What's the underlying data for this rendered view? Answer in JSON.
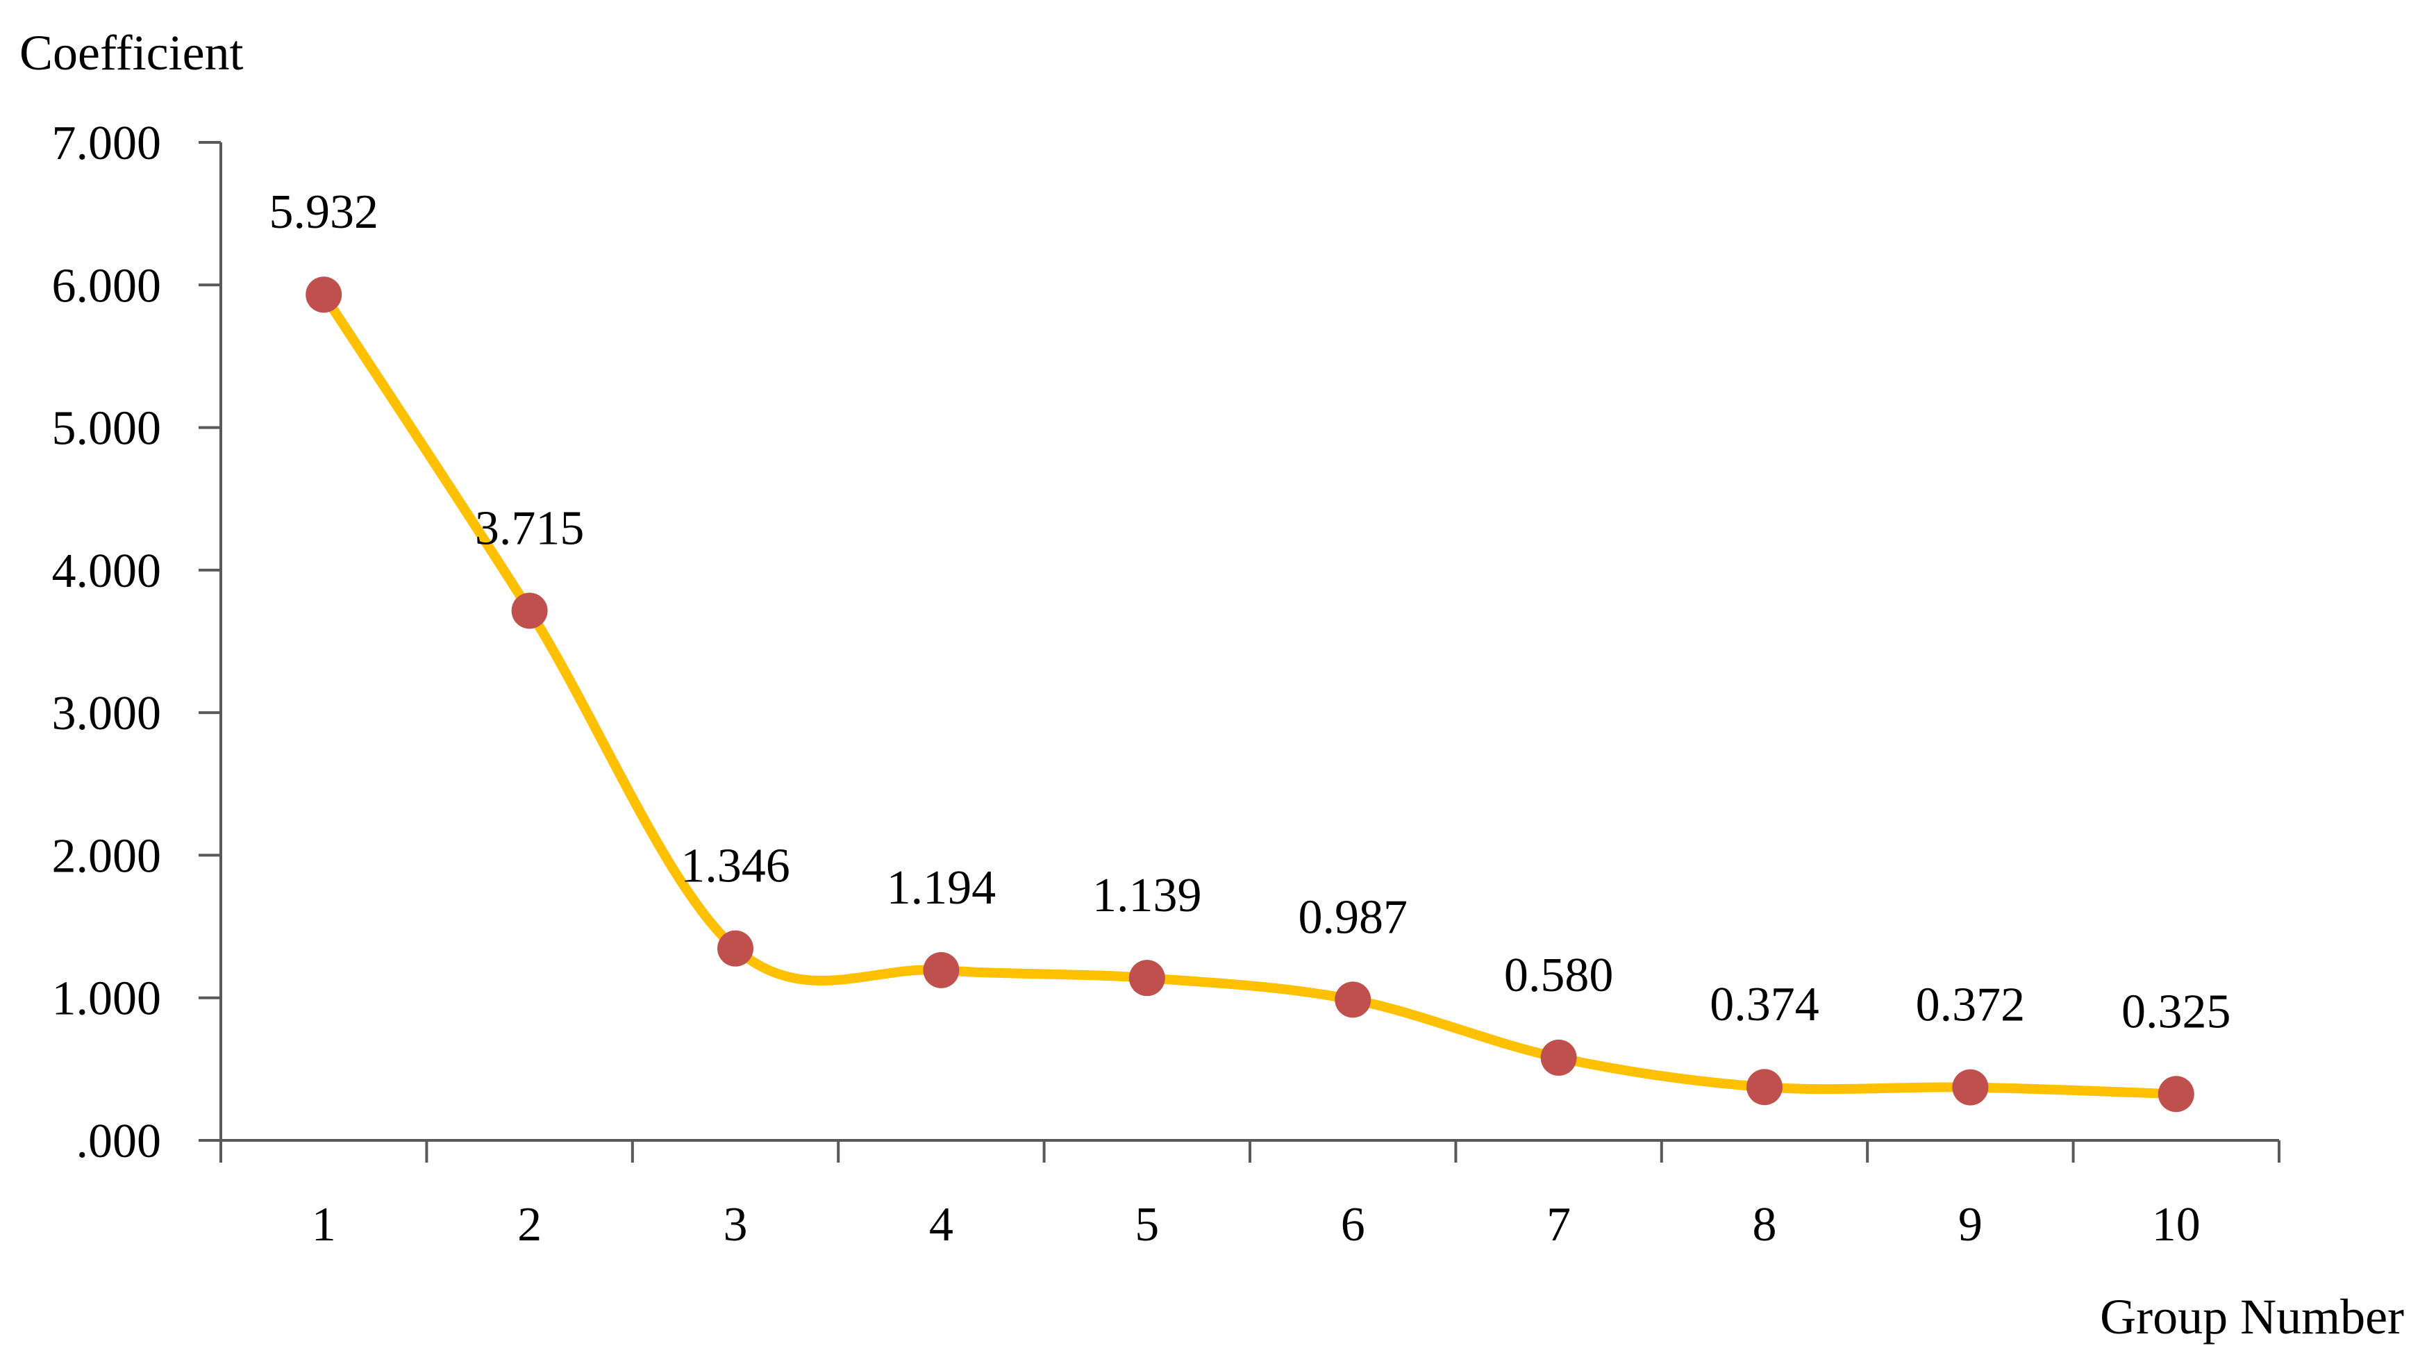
{
  "chart_data": {
    "type": "line",
    "title": "",
    "ylabel": "Coefficient",
    "xlabel": "Group Number",
    "x": [
      1,
      2,
      3,
      4,
      5,
      6,
      7,
      8,
      9,
      10
    ],
    "x_tick_labels": [
      "1",
      "2",
      "3",
      "4",
      "5",
      "6",
      "7",
      "8",
      "9",
      "10"
    ],
    "series": [
      {
        "values": [
          5.932,
          3.715,
          1.346,
          1.194,
          1.139,
          0.987,
          0.58,
          0.374,
          0.372,
          0.325
        ],
        "data_labels": [
          "5.932",
          "3.715",
          "1.346",
          "1.194",
          "1.139",
          "0.987",
          "0.580",
          "0.374",
          "0.372",
          "0.325"
        ],
        "line_color": "#FFC000",
        "marker_color": "#C0504D",
        "smooth": true
      }
    ],
    "ylim": [
      0,
      7
    ],
    "y_ticks": [
      0,
      1,
      2,
      3,
      4,
      5,
      6,
      7
    ],
    "y_tick_labels": [
      ".000",
      "1.000",
      "2.000",
      "3.000",
      "4.000",
      "5.000",
      "6.000",
      "7.000"
    ],
    "grid": false,
    "legend": "none",
    "axis_color": "#595959"
  }
}
